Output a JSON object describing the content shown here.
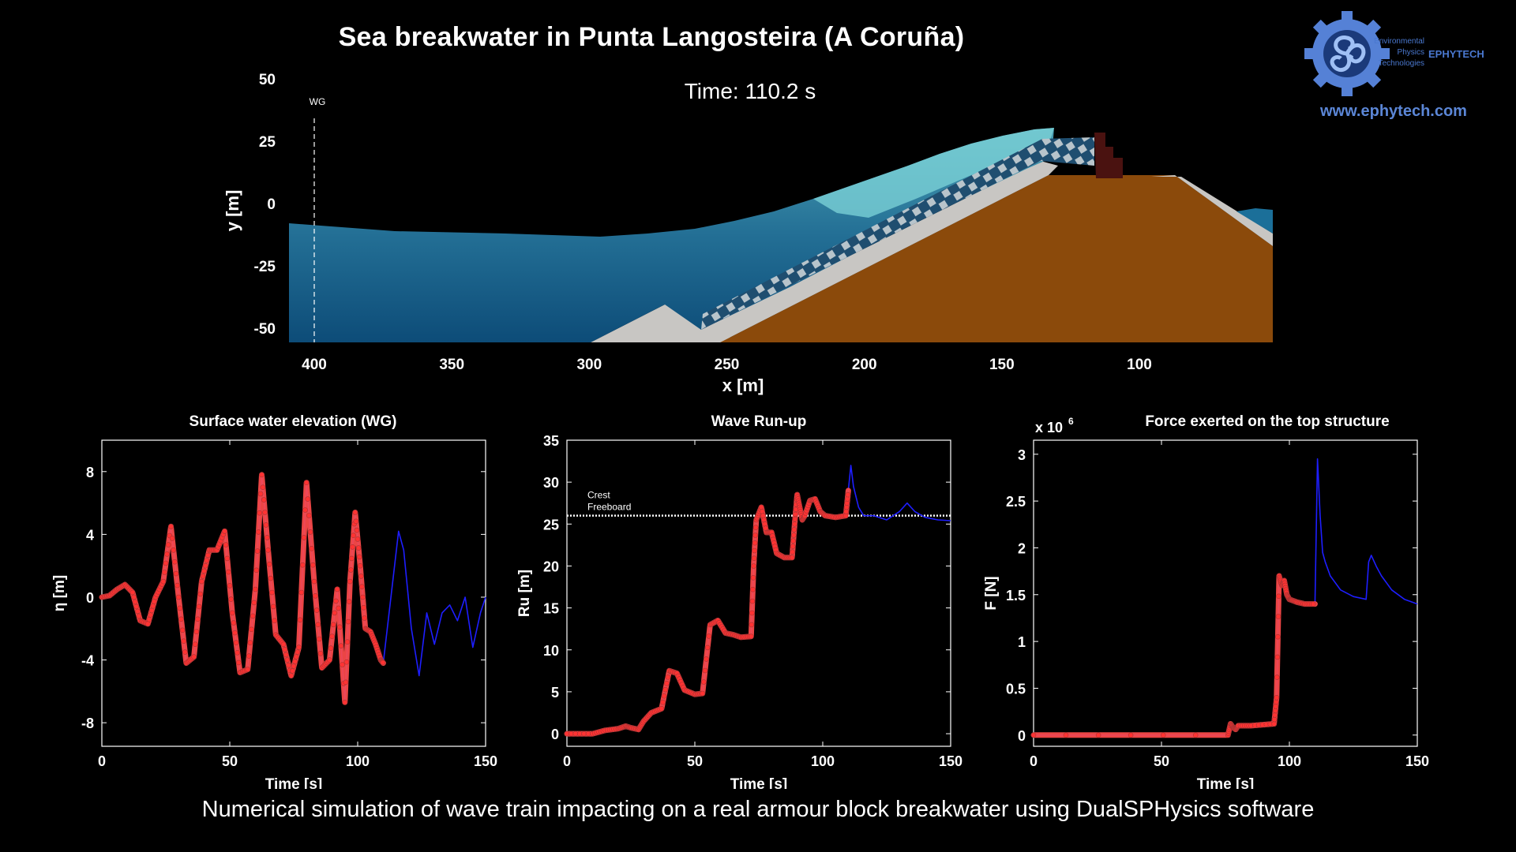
{
  "title": "Sea breakwater  in Punta Langosteira (A Coruña)",
  "time_label": "Time: 110.2 s",
  "footer": "Numerical simulation of wave train impacting on a real armour block breakwater using DualSPHysics software",
  "logo": {
    "brand": "EPHYTECH",
    "line1": "Environmental",
    "line2": "Physics",
    "line3": "Technologies",
    "url": "www.ephytech.com",
    "icon": "gear-triskelion-icon"
  },
  "colors": {
    "background": "#000000",
    "water": "#1c6e93",
    "foam": "#7fd6da",
    "armour_blocks": "#b5c0c6",
    "core": "#8b4a0b",
    "underlayer": "#c9c7c4",
    "crown_wall": "#4a1210",
    "series_sim": "#1a1aff",
    "series_exp": "#ff4444"
  },
  "chart_data": [
    {
      "type": "line",
      "id": "domain",
      "title": "",
      "xlabel": "x [m]",
      "ylabel": "y [m]",
      "x_ticks": [
        400,
        350,
        300,
        250,
        200,
        150,
        100
      ],
      "y_ticks": [
        50,
        25,
        0,
        -25,
        -50
      ],
      "xlim": [
        410,
        55
      ],
      "ylim": [
        -55,
        55
      ],
      "wave_gauge": {
        "label": "WG",
        "x": 400
      },
      "free_surface": {
        "x": [
          410,
          380,
          340,
          300,
          270,
          250,
          230,
          215,
          205,
          190,
          170,
          150,
          130,
          125,
          120
        ],
        "y": [
          -8,
          -11,
          -11,
          -12,
          -10,
          -7,
          -5,
          -3,
          1,
          3,
          10,
          17,
          25,
          27,
          28
        ]
      }
    },
    {
      "type": "line",
      "id": "surface-elevation",
      "title": "Surface water elevation (WG)",
      "xlabel": "Time [s]",
      "ylabel": "η [m]",
      "xlim": [
        0,
        150
      ],
      "ylim": [
        -9.5,
        10
      ],
      "x_ticks": [
        0,
        50,
        100,
        150
      ],
      "y_ticks": [
        8,
        4,
        0,
        -4,
        -8
      ],
      "series": [
        {
          "color": "blue",
          "x": [
            0,
            3,
            6,
            9,
            12,
            15,
            18,
            21,
            24,
            27,
            30,
            33,
            36,
            39,
            42,
            45,
            48,
            51,
            54,
            57,
            60,
            62.5,
            65,
            68,
            71,
            74,
            77,
            80,
            83,
            86,
            89,
            92,
            95,
            97,
            99,
            101,
            103,
            105,
            107,
            109,
            110,
            113,
            116,
            118,
            121,
            124,
            127,
            130,
            133,
            136,
            139,
            142,
            145,
            148,
            150
          ],
          "y": [
            0,
            0.1,
            0.5,
            0.8,
            0.3,
            -1.5,
            -1.7,
            0,
            1,
            4.5,
            0,
            -4.2,
            -3.8,
            1,
            3,
            3,
            4.2,
            -1,
            -4.8,
            -4.6,
            0.5,
            7.8,
            3,
            -2.4,
            -3,
            -5,
            -3.2,
            7.3,
            1,
            -4.5,
            -4,
            0.5,
            -6.7,
            1,
            5.4,
            2,
            -2,
            -2.2,
            -3,
            -4,
            -4.2,
            0,
            4.2,
            3,
            -2,
            -5,
            -1,
            -3,
            -1,
            -0.5,
            -1.5,
            0,
            -3.2,
            -1,
            0
          ]
        },
        {
          "color": "red",
          "x": [
            0,
            3,
            6,
            9,
            12,
            15,
            18,
            21,
            24,
            27,
            30,
            33,
            36,
            39,
            42,
            45,
            48,
            51,
            54,
            57,
            60,
            62.5,
            65,
            68,
            71,
            74,
            77,
            80,
            83,
            86,
            89,
            92,
            95,
            97,
            99,
            101,
            103,
            105,
            107,
            109,
            110
          ],
          "y": [
            0,
            0.1,
            0.5,
            0.8,
            0.3,
            -1.5,
            -1.7,
            0,
            1,
            4.5,
            0,
            -4.2,
            -3.8,
            1,
            3,
            3,
            4.2,
            -1,
            -4.8,
            -4.6,
            0.5,
            7.8,
            3,
            -2.4,
            -3,
            -5,
            -3.2,
            7.3,
            1,
            -4.5,
            -4,
            0.5,
            -6.7,
            1,
            5.4,
            2,
            -2,
            -2.2,
            -3,
            -4,
            -4.2
          ]
        }
      ]
    },
    {
      "type": "line",
      "id": "run-up",
      "title": "Wave Run-up",
      "xlabel": "Time [s]",
      "ylabel": "Ru [m]",
      "xlim": [
        0,
        150
      ],
      "ylim": [
        -1.5,
        35
      ],
      "x_ticks": [
        0,
        50,
        100,
        150
      ],
      "y_ticks": [
        0,
        5,
        10,
        15,
        20,
        25,
        30,
        35
      ],
      "annotation": {
        "text_line1": "Crest",
        "text_line2": "Freeboard",
        "y": 26
      },
      "series": [
        {
          "color": "blue",
          "x": [
            0,
            10,
            15,
            20,
            23,
            25,
            28,
            30,
            33,
            37,
            40,
            43,
            46,
            50,
            53,
            56,
            59,
            62,
            65,
            68,
            72,
            73,
            74,
            76,
            78,
            80,
            82,
            85,
            88,
            89,
            90,
            91,
            92,
            93,
            95,
            97,
            99,
            101,
            105,
            109,
            110,
            111,
            112,
            114,
            116,
            120,
            125,
            130,
            133,
            136,
            140,
            145,
            150
          ],
          "y": [
            0,
            0,
            0.4,
            0.6,
            0.9,
            0.7,
            0.5,
            1.5,
            2.5,
            3,
            7.5,
            7.2,
            5.2,
            4.7,
            4.8,
            13,
            13.5,
            12,
            11.8,
            11.5,
            11.6,
            20,
            25.5,
            27,
            24,
            24,
            21.5,
            21,
            21,
            25,
            28.5,
            27,
            25.5,
            26,
            27.8,
            28,
            26.5,
            26,
            25.8,
            26,
            29,
            32,
            29.5,
            27,
            26,
            26,
            25.5,
            26.5,
            27.5,
            26.5,
            25.8,
            25.5,
            25.4
          ]
        },
        {
          "color": "red",
          "x": [
            0,
            10,
            15,
            20,
            23,
            25,
            28,
            30,
            33,
            37,
            40,
            43,
            46,
            50,
            53,
            56,
            59,
            62,
            65,
            68,
            72,
            73,
            74,
            76,
            78,
            80,
            82,
            85,
            88,
            89,
            90,
            91,
            92,
            93,
            95,
            97,
            99,
            101,
            105,
            109,
            110
          ],
          "y": [
            0,
            0,
            0.4,
            0.6,
            0.9,
            0.7,
            0.5,
            1.5,
            2.5,
            3,
            7.5,
            7.2,
            5.2,
            4.7,
            4.8,
            13,
            13.5,
            12,
            11.8,
            11.5,
            11.6,
            20,
            25.5,
            27,
            24,
            24,
            21.5,
            21,
            21,
            25,
            28.5,
            27,
            25.5,
            26,
            27.8,
            28,
            26.5,
            26,
            25.8,
            26,
            29
          ]
        }
      ]
    },
    {
      "type": "line",
      "id": "force",
      "title": "Force exerted on the top structure",
      "multiplier_label": "x 10",
      "multiplier_exp": "6",
      "xlabel": "Time [s]",
      "ylabel": "F [N]",
      "xlim": [
        0,
        150
      ],
      "ylim": [
        -0.12,
        3.15
      ],
      "x_ticks": [
        0,
        50,
        100,
        150
      ],
      "y_ticks": [
        0,
        0.5,
        1,
        1.5,
        2,
        2.5,
        3
      ],
      "series": [
        {
          "color": "blue",
          "x": [
            0,
            76,
            77,
            78,
            79,
            80,
            85,
            94,
            95,
            96,
            97,
            98,
            99,
            100,
            101,
            103,
            106,
            110,
            111,
            112,
            113,
            114,
            116,
            120,
            125,
            130,
            131,
            132,
            134,
            136,
            140,
            145,
            150
          ],
          "y": [
            0,
            0,
            0.12,
            0.08,
            0.06,
            0.1,
            0.1,
            0.12,
            0.4,
            1.7,
            1.6,
            1.65,
            1.5,
            1.45,
            1.44,
            1.42,
            1.4,
            1.4,
            2.95,
            2.35,
            1.95,
            1.85,
            1.7,
            1.55,
            1.48,
            1.45,
            1.85,
            1.92,
            1.8,
            1.7,
            1.55,
            1.45,
            1.4
          ]
        },
        {
          "color": "red",
          "x": [
            0,
            76,
            77,
            78,
            79,
            80,
            85,
            94,
            95,
            96,
            97,
            98,
            99,
            100,
            101,
            103,
            106,
            110
          ],
          "y": [
            0,
            0,
            0.12,
            0.08,
            0.06,
            0.1,
            0.1,
            0.12,
            0.4,
            1.7,
            1.6,
            1.65,
            1.5,
            1.45,
            1.44,
            1.42,
            1.4,
            1.4
          ]
        }
      ]
    }
  ]
}
